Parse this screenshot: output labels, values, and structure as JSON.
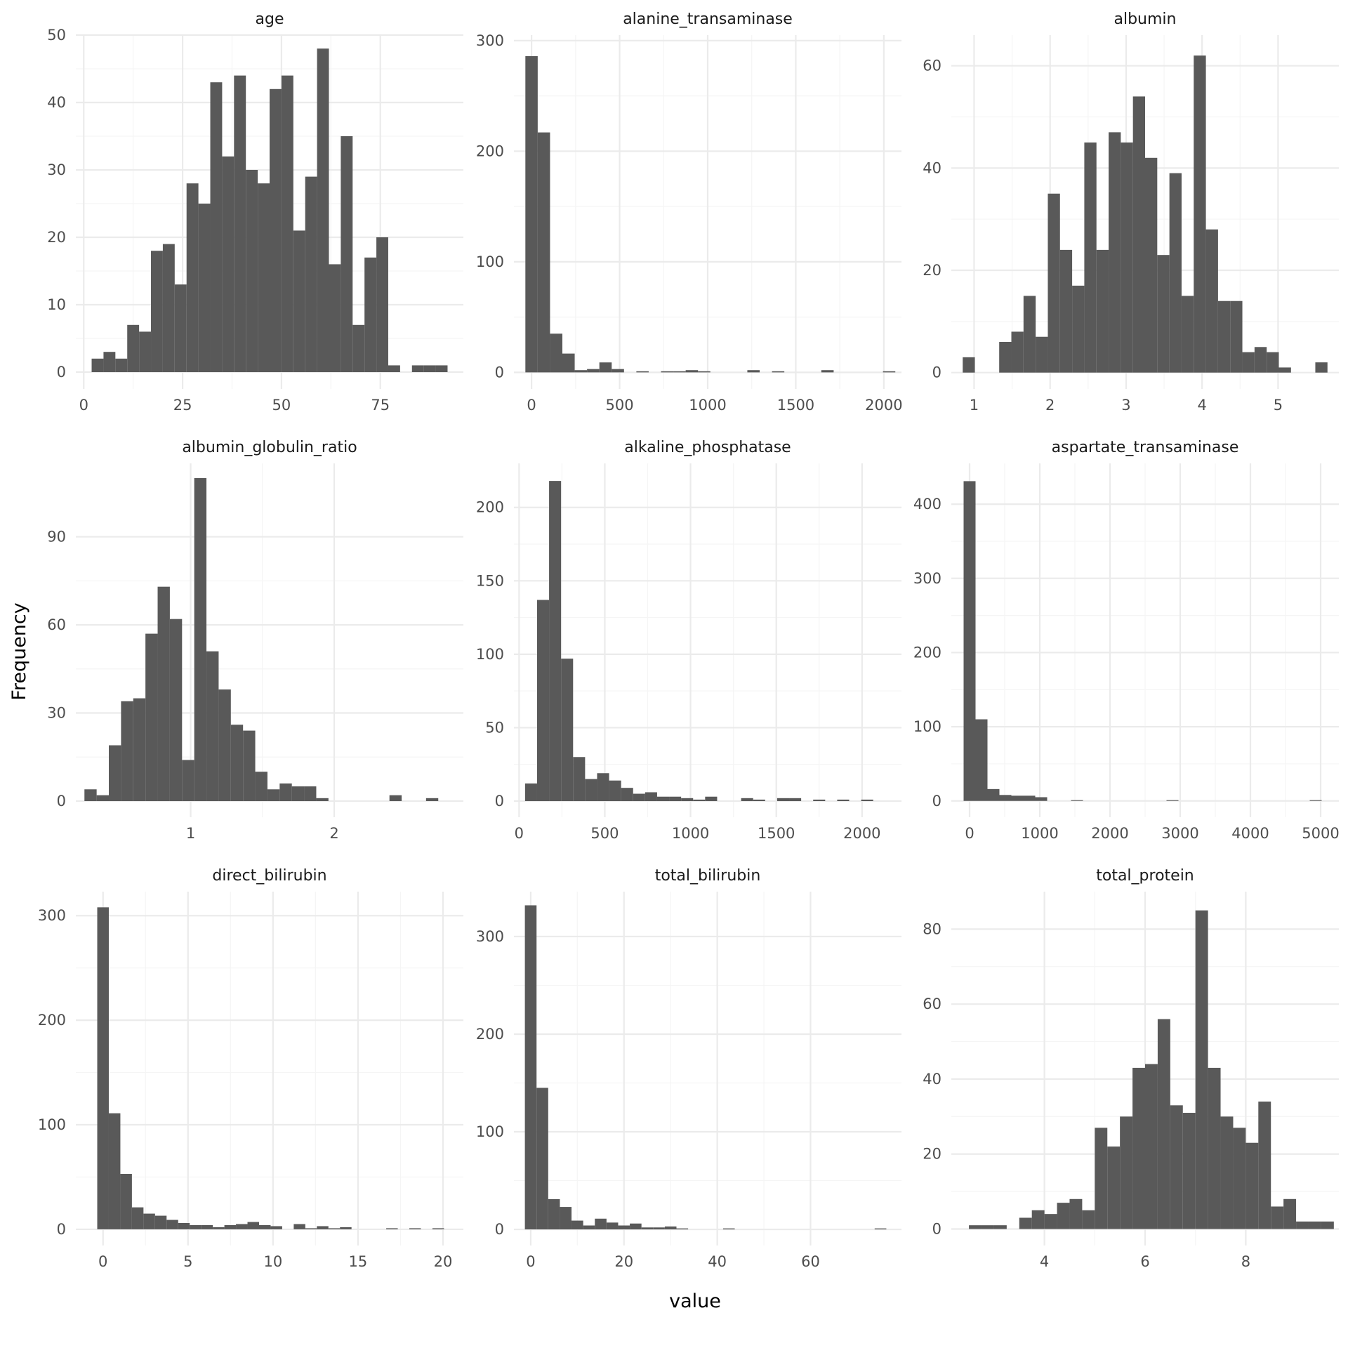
{
  "figure": {
    "xlabel": "value",
    "ylabel": "Frequency",
    "bar_color": "#595959",
    "grid_major_color": "#ebebeb",
    "grid_minor_color": "#f5f5f5",
    "background": "#ffffff"
  },
  "chart_data": [
    {
      "type": "bar",
      "title": "age",
      "xlim": [
        -2,
        96
      ],
      "ylim": [
        -2.5,
        50
      ],
      "xticks": [
        0,
        25,
        50,
        75
      ],
      "xtick_labels": [
        "0",
        "25",
        "50",
        "75"
      ],
      "yticks": [
        0,
        10,
        20,
        30,
        40,
        50
      ],
      "ytick_labels": [
        "0",
        "10",
        "20",
        "30",
        "40",
        "50"
      ],
      "bins": [
        [
          2,
          5,
          2
        ],
        [
          5,
          8,
          3
        ],
        [
          8,
          11,
          2
        ],
        [
          11,
          14,
          7
        ],
        [
          14,
          17,
          6
        ],
        [
          17,
          20,
          18
        ],
        [
          20,
          23,
          19
        ],
        [
          23,
          26,
          13
        ],
        [
          26,
          29,
          28
        ],
        [
          29,
          32,
          25
        ],
        [
          32,
          35,
          43
        ],
        [
          35,
          38,
          32
        ],
        [
          38,
          41,
          44
        ],
        [
          41,
          44,
          30
        ],
        [
          44,
          47,
          28
        ],
        [
          47,
          50,
          42
        ],
        [
          50,
          53,
          44
        ],
        [
          53,
          56,
          21
        ],
        [
          56,
          59,
          29
        ],
        [
          59,
          62,
          48
        ],
        [
          62,
          65,
          16
        ],
        [
          65,
          68,
          35
        ],
        [
          68,
          71,
          7
        ],
        [
          71,
          74,
          17
        ],
        [
          74,
          77,
          20
        ],
        [
          77,
          80,
          1
        ],
        [
          83,
          86,
          1
        ],
        [
          86,
          89,
          1
        ],
        [
          89,
          92,
          1
        ]
      ]
    },
    {
      "type": "bar",
      "title": "alanine_transaminase",
      "xlim": [
        -100,
        2100
      ],
      "ylim": [
        -15,
        305
      ],
      "xticks": [
        0,
        500,
        1000,
        1500,
        2000
      ],
      "xtick_labels": [
        "0",
        "500",
        "1000",
        "1500",
        "2000"
      ],
      "yticks": [
        0,
        100,
        200,
        300
      ],
      "ytick_labels": [
        "0",
        "100",
        "200",
        "300"
      ],
      "bins": [
        [
          -35,
          35,
          286
        ],
        [
          35,
          105,
          217
        ],
        [
          105,
          175,
          35
        ],
        [
          175,
          245,
          17
        ],
        [
          245,
          315,
          2
        ],
        [
          315,
          385,
          3
        ],
        [
          385,
          455,
          9
        ],
        [
          455,
          525,
          3
        ],
        [
          595,
          665,
          1
        ],
        [
          735,
          805,
          1
        ],
        [
          805,
          875,
          1
        ],
        [
          875,
          945,
          2
        ],
        [
          945,
          1015,
          1
        ],
        [
          1225,
          1295,
          2
        ],
        [
          1365,
          1435,
          1
        ],
        [
          1645,
          1715,
          2
        ],
        [
          1995,
          2065,
          1
        ]
      ]
    },
    {
      "type": "bar",
      "title": "albumin",
      "xlim": [
        0.7,
        5.8
      ],
      "ylim": [
        -3.2,
        66
      ],
      "xticks": [
        1,
        2,
        3,
        4,
        5
      ],
      "xtick_labels": [
        "1",
        "2",
        "3",
        "4",
        "5"
      ],
      "yticks": [
        0,
        20,
        40,
        60
      ],
      "ytick_labels": [
        "0",
        "20",
        "40",
        "60"
      ],
      "bins": [
        [
          0.85,
          1.01,
          3
        ],
        [
          1.33,
          1.49,
          6
        ],
        [
          1.49,
          1.65,
          8
        ],
        [
          1.65,
          1.81,
          15
        ],
        [
          1.81,
          1.97,
          7
        ],
        [
          1.97,
          2.13,
          35
        ],
        [
          2.13,
          2.29,
          24
        ],
        [
          2.29,
          2.45,
          17
        ],
        [
          2.45,
          2.61,
          45
        ],
        [
          2.61,
          2.77,
          24
        ],
        [
          2.77,
          2.93,
          47
        ],
        [
          2.93,
          3.09,
          45
        ],
        [
          3.09,
          3.25,
          54
        ],
        [
          3.25,
          3.41,
          42
        ],
        [
          3.41,
          3.57,
          23
        ],
        [
          3.57,
          3.73,
          39
        ],
        [
          3.73,
          3.89,
          15
        ],
        [
          3.89,
          4.05,
          62
        ],
        [
          4.05,
          4.21,
          28
        ],
        [
          4.21,
          4.37,
          14
        ],
        [
          4.37,
          4.53,
          14
        ],
        [
          4.53,
          4.69,
          4
        ],
        [
          4.69,
          4.85,
          5
        ],
        [
          4.85,
          5.01,
          4
        ],
        [
          5.01,
          5.17,
          1
        ],
        [
          5.49,
          5.65,
          2
        ]
      ]
    },
    {
      "type": "bar",
      "title": "albumin_globulin_ratio",
      "xlim": [
        0.2,
        2.9
      ],
      "ylim": [
        -5.5,
        115
      ],
      "xticks": [
        1,
        2
      ],
      "xtick_labels": [
        "1",
        "2"
      ],
      "yticks": [
        0,
        30,
        60,
        90
      ],
      "ytick_labels": [
        "0",
        "30",
        "60",
        "90"
      ],
      "bins": [
        [
          0.26,
          0.345,
          4
        ],
        [
          0.345,
          0.43,
          2
        ],
        [
          0.43,
          0.515,
          19
        ],
        [
          0.515,
          0.6,
          34
        ],
        [
          0.6,
          0.685,
          35
        ],
        [
          0.685,
          0.77,
          57
        ],
        [
          0.77,
          0.855,
          73
        ],
        [
          0.855,
          0.94,
          62
        ],
        [
          0.94,
          1.025,
          14
        ],
        [
          1.025,
          1.11,
          110
        ],
        [
          1.11,
          1.195,
          51
        ],
        [
          1.195,
          1.28,
          38
        ],
        [
          1.28,
          1.365,
          26
        ],
        [
          1.365,
          1.45,
          24
        ],
        [
          1.45,
          1.535,
          10
        ],
        [
          1.535,
          1.62,
          4
        ],
        [
          1.62,
          1.705,
          6
        ],
        [
          1.705,
          1.79,
          5
        ],
        [
          1.79,
          1.875,
          5
        ],
        [
          1.875,
          1.96,
          1
        ],
        [
          2.385,
          2.47,
          2
        ],
        [
          2.64,
          2.725,
          1
        ]
      ]
    },
    {
      "type": "bar",
      "title": "alkaline_phosphatase",
      "xlim": [
        -30,
        2230
      ],
      "ylim": [
        -11,
        230
      ],
      "xticks": [
        0,
        500,
        1000,
        1500,
        2000
      ],
      "xtick_labels": [
        "0",
        "500",
        "1000",
        "1500",
        "2000"
      ],
      "yticks": [
        0,
        50,
        100,
        150,
        200
      ],
      "ytick_labels": [
        "0",
        "50",
        "100",
        "150",
        "200"
      ],
      "bins": [
        [
          35,
          105,
          12
        ],
        [
          105,
          175,
          137
        ],
        [
          175,
          245,
          218
        ],
        [
          245,
          315,
          97
        ],
        [
          315,
          385,
          30
        ],
        [
          385,
          455,
          15
        ],
        [
          455,
          525,
          19
        ],
        [
          525,
          595,
          14
        ],
        [
          595,
          665,
          9
        ],
        [
          665,
          735,
          5
        ],
        [
          735,
          805,
          6
        ],
        [
          805,
          875,
          3
        ],
        [
          875,
          945,
          3
        ],
        [
          945,
          1015,
          2
        ],
        [
          1015,
          1085,
          1
        ],
        [
          1085,
          1155,
          3
        ],
        [
          1295,
          1365,
          2
        ],
        [
          1365,
          1435,
          1
        ],
        [
          1505,
          1575,
          2
        ],
        [
          1575,
          1645,
          2
        ],
        [
          1715,
          1785,
          1
        ],
        [
          1855,
          1925,
          1
        ],
        [
          1995,
          2065,
          1
        ]
      ]
    },
    {
      "type": "bar",
      "title": "aspartate_transaminase",
      "xlim": [
        -260,
        5260
      ],
      "ylim": [
        -22,
        455
      ],
      "xticks": [
        0,
        1000,
        2000,
        3000,
        4000,
        5000
      ],
      "xtick_labels": [
        "0",
        "1000",
        "2000",
        "3000",
        "4000",
        "5000"
      ],
      "yticks": [
        0,
        100,
        200,
        300,
        400
      ],
      "ytick_labels": [
        "0",
        "100",
        "200",
        "300",
        "400"
      ],
      "bins": [
        [
          -85,
          85,
          431
        ],
        [
          85,
          255,
          110
        ],
        [
          255,
          425,
          16
        ],
        [
          425,
          595,
          8
        ],
        [
          595,
          765,
          7
        ],
        [
          765,
          935,
          7
        ],
        [
          935,
          1105,
          5
        ],
        [
          1445,
          1615,
          1
        ],
        [
          2805,
          2975,
          1
        ],
        [
          4845,
          5015,
          1
        ]
      ]
    },
    {
      "type": "bar",
      "title": "direct_bilirubin",
      "xlim": [
        -1.6,
        21.2
      ],
      "ylim": [
        -15.5,
        323
      ],
      "xticks": [
        0,
        5,
        10,
        15,
        20
      ],
      "xtick_labels": [
        "0",
        "5",
        "10",
        "15",
        "20"
      ],
      "yticks": [
        0,
        100,
        200,
        300
      ],
      "ytick_labels": [
        "0",
        "100",
        "200",
        "300"
      ],
      "bins": [
        [
          -0.34,
          0.34,
          308
        ],
        [
          0.34,
          1.02,
          111
        ],
        [
          1.02,
          1.7,
          53
        ],
        [
          1.7,
          2.38,
          21
        ],
        [
          2.38,
          3.06,
          15
        ],
        [
          3.06,
          3.74,
          13
        ],
        [
          3.74,
          4.42,
          9
        ],
        [
          4.42,
          5.1,
          6
        ],
        [
          5.1,
          5.78,
          4
        ],
        [
          5.78,
          6.46,
          4
        ],
        [
          6.46,
          7.14,
          2
        ],
        [
          7.14,
          7.82,
          4
        ],
        [
          7.82,
          8.5,
          5
        ],
        [
          8.5,
          9.18,
          7
        ],
        [
          9.18,
          9.86,
          4
        ],
        [
          9.86,
          10.54,
          3
        ],
        [
          11.22,
          11.9,
          5
        ],
        [
          11.9,
          12.58,
          1
        ],
        [
          12.58,
          13.26,
          3
        ],
        [
          13.26,
          13.94,
          1
        ],
        [
          13.94,
          14.62,
          2
        ],
        [
          16.66,
          17.34,
          1
        ],
        [
          18.02,
          18.7,
          1
        ],
        [
          19.38,
          20.06,
          1
        ]
      ]
    },
    {
      "type": "bar",
      "title": "total_bilirubin",
      "xlim": [
        -3.6,
        79.5
      ],
      "ylim": [
        -16.5,
        346
      ],
      "xticks": [
        0,
        20,
        40,
        60
      ],
      "xtick_labels": [
        "0",
        "20",
        "40",
        "60"
      ],
      "yticks": [
        0,
        100,
        200,
        300
      ],
      "ytick_labels": [
        "0",
        "100",
        "200",
        "300"
      ],
      "bins": [
        [
          -1.25,
          1.25,
          332
        ],
        [
          1.25,
          3.75,
          145
        ],
        [
          3.75,
          6.25,
          31
        ],
        [
          6.25,
          8.75,
          23
        ],
        [
          8.75,
          11.25,
          9
        ],
        [
          11.25,
          13.75,
          4
        ],
        [
          13.75,
          16.25,
          11
        ],
        [
          16.25,
          18.75,
          7
        ],
        [
          18.75,
          21.25,
          4
        ],
        [
          21.25,
          23.75,
          6
        ],
        [
          23.75,
          26.25,
          2
        ],
        [
          26.25,
          28.75,
          2
        ],
        [
          28.75,
          31.25,
          3
        ],
        [
          31.25,
          33.75,
          1
        ],
        [
          41.25,
          43.75,
          1
        ],
        [
          73.75,
          76.25,
          1
        ]
      ]
    },
    {
      "type": "bar",
      "title": "total_protein",
      "xlim": [
        2.15,
        9.85
      ],
      "ylim": [
        -4.4,
        90
      ],
      "xticks": [
        4,
        6,
        8
      ],
      "xtick_labels": [
        "4",
        "6",
        "8"
      ],
      "yticks": [
        0,
        20,
        40,
        60,
        80
      ],
      "ytick_labels": [
        "0",
        "20",
        "40",
        "60",
        "80"
      ],
      "bins": [
        [
          2.5,
          2.75,
          1
        ],
        [
          2.75,
          3.0,
          1
        ],
        [
          3.0,
          3.25,
          1
        ],
        [
          3.5,
          3.75,
          3
        ],
        [
          3.75,
          4.0,
          5
        ],
        [
          4.0,
          4.25,
          4
        ],
        [
          4.25,
          4.5,
          7
        ],
        [
          4.5,
          4.75,
          8
        ],
        [
          4.75,
          5.0,
          5
        ],
        [
          5.0,
          5.25,
          27
        ],
        [
          5.25,
          5.5,
          22
        ],
        [
          5.5,
          5.75,
          30
        ],
        [
          5.75,
          6.0,
          43
        ],
        [
          6.0,
          6.25,
          44
        ],
        [
          6.25,
          6.5,
          56
        ],
        [
          6.5,
          6.75,
          33
        ],
        [
          6.75,
          7.0,
          31
        ],
        [
          7.0,
          7.25,
          85
        ],
        [
          7.25,
          7.5,
          43
        ],
        [
          7.5,
          7.75,
          30
        ],
        [
          7.75,
          8.0,
          27
        ],
        [
          8.0,
          8.25,
          23
        ],
        [
          8.25,
          8.5,
          34
        ],
        [
          8.5,
          8.75,
          6
        ],
        [
          8.75,
          9.0,
          8
        ],
        [
          9.0,
          9.25,
          2
        ],
        [
          9.25,
          9.5,
          2
        ],
        [
          9.5,
          9.75,
          2
        ]
      ]
    }
  ]
}
